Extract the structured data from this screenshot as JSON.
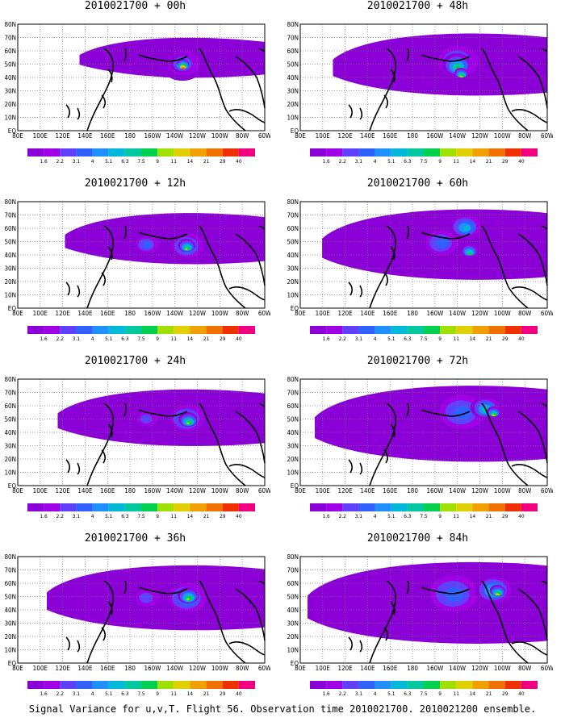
{
  "panels": [
    {
      "title": "2010021700 + 00h",
      "spread": 0.15,
      "blobs": [
        {
          "x": 185,
          "y": 52,
          "r": 14,
          "level": 1
        },
        {
          "x": 205,
          "y": 48,
          "r": 22,
          "level": 2
        },
        {
          "x": 205,
          "y": 48,
          "r": 12,
          "level": 6
        },
        {
          "x": 205,
          "y": 48,
          "r": 5,
          "level": 13
        }
      ]
    },
    {
      "title": "2010021700 + 48h",
      "spread": 0.55,
      "blobs": [
        {
          "x": 195,
          "y": 45,
          "r": 25,
          "level": 3
        },
        {
          "x": 195,
          "y": 50,
          "r": 14,
          "level": 7
        },
        {
          "x": 200,
          "y": 60,
          "r": 6,
          "level": 9
        }
      ]
    },
    {
      "title": "2010021700 + 12h",
      "spread": 0.35,
      "blobs": [
        {
          "x": 160,
          "y": 52,
          "r": 14,
          "level": 3
        },
        {
          "x": 210,
          "y": 54,
          "r": 18,
          "level": 4
        },
        {
          "x": 210,
          "y": 54,
          "r": 8,
          "level": 8
        }
      ]
    },
    {
      "title": "2010021700 + 60h",
      "spread": 0.7,
      "blobs": [
        {
          "x": 175,
          "y": 50,
          "r": 20,
          "level": 3
        },
        {
          "x": 205,
          "y": 30,
          "r": 16,
          "level": 5
        },
        {
          "x": 210,
          "y": 60,
          "r": 8,
          "level": 7
        }
      ]
    },
    {
      "title": "2010021700 + 24h",
      "spread": 0.45,
      "blobs": [
        {
          "x": 160,
          "y": 48,
          "r": 14,
          "level": 2
        },
        {
          "x": 210,
          "y": 48,
          "r": 20,
          "level": 4
        },
        {
          "x": 212,
          "y": 50,
          "r": 9,
          "level": 8
        }
      ]
    },
    {
      "title": "2010021700 + 72h",
      "spread": 0.8,
      "blobs": [
        {
          "x": 200,
          "y": 40,
          "r": 28,
          "level": 3
        },
        {
          "x": 230,
          "y": 35,
          "r": 14,
          "level": 6
        },
        {
          "x": 240,
          "y": 40,
          "r": 6,
          "level": 9
        }
      ]
    },
    {
      "title": "2010021700 + 36h",
      "spread": 0.6,
      "blobs": [
        {
          "x": 160,
          "y": 50,
          "r": 16,
          "level": 2
        },
        {
          "x": 210,
          "y": 50,
          "r": 22,
          "level": 4
        },
        {
          "x": 212,
          "y": 48,
          "r": 10,
          "level": 8
        }
      ]
    },
    {
      "title": "2010021700 + 84h",
      "spread": 0.9,
      "blobs": [
        {
          "x": 190,
          "y": 45,
          "r": 30,
          "level": 3
        },
        {
          "x": 240,
          "y": 40,
          "r": 18,
          "level": 6
        },
        {
          "x": 245,
          "y": 42,
          "r": 7,
          "level": 9
        }
      ]
    }
  ],
  "lon_labels": [
    "80E",
    "100E",
    "120E",
    "140E",
    "160E",
    "180",
    "160W",
    "140W",
    "120W",
    "100W",
    "80W",
    "60W"
  ],
  "lat_labels": [
    "EQ",
    "10N",
    "20N",
    "30N",
    "40N",
    "50N",
    "60N",
    "70N",
    "80N"
  ],
  "colorbar": {
    "labels": [
      "1.6",
      "2.2",
      "3.1",
      "4",
      "5.1",
      "6.3",
      "7.5",
      "9",
      "11",
      "14",
      "21",
      "29",
      "40"
    ],
    "colors": [
      "#8a00d6",
      "#a000e6",
      "#6040ff",
      "#3060ff",
      "#1e90ff",
      "#00b8d8",
      "#00c8a0",
      "#00d050",
      "#a0e000",
      "#e0d000",
      "#f0a000",
      "#f07000",
      "#f03000",
      "#f00080"
    ]
  },
  "caption": "Signal Variance for u,v,T. Flight 56. Observation time 2010021700. 2010021200 ensemble."
}
